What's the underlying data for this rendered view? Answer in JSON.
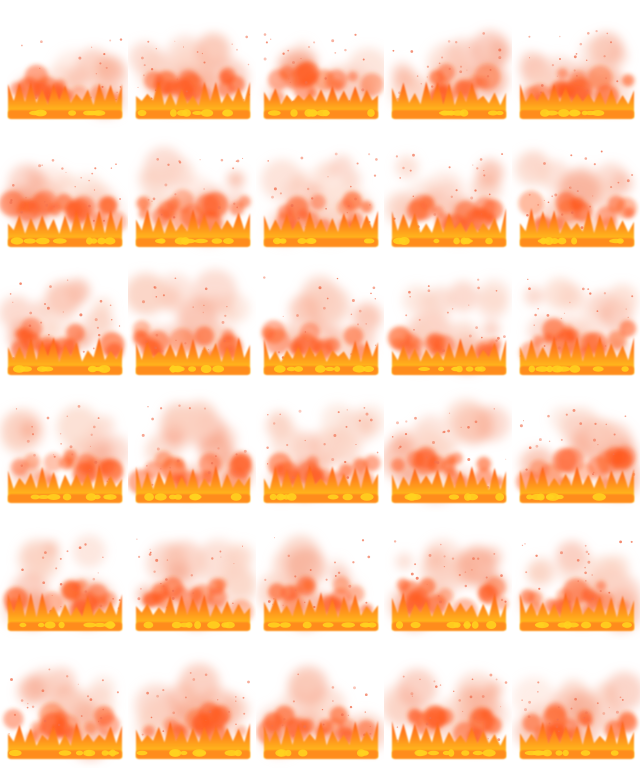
{
  "sprite_sheet": {
    "columns": 5,
    "rows": 6,
    "frame_count": 30,
    "subject": "fire",
    "colors": {
      "background": "#ffffff",
      "smoke_light": "#fbd0c0",
      "smoke_mid": "#f7a084",
      "flame_red": "#ff5a1e",
      "flame_orange": "#ff8c1a",
      "flame_yellow": "#ffd21f",
      "ember_red": "#f07050"
    }
  }
}
